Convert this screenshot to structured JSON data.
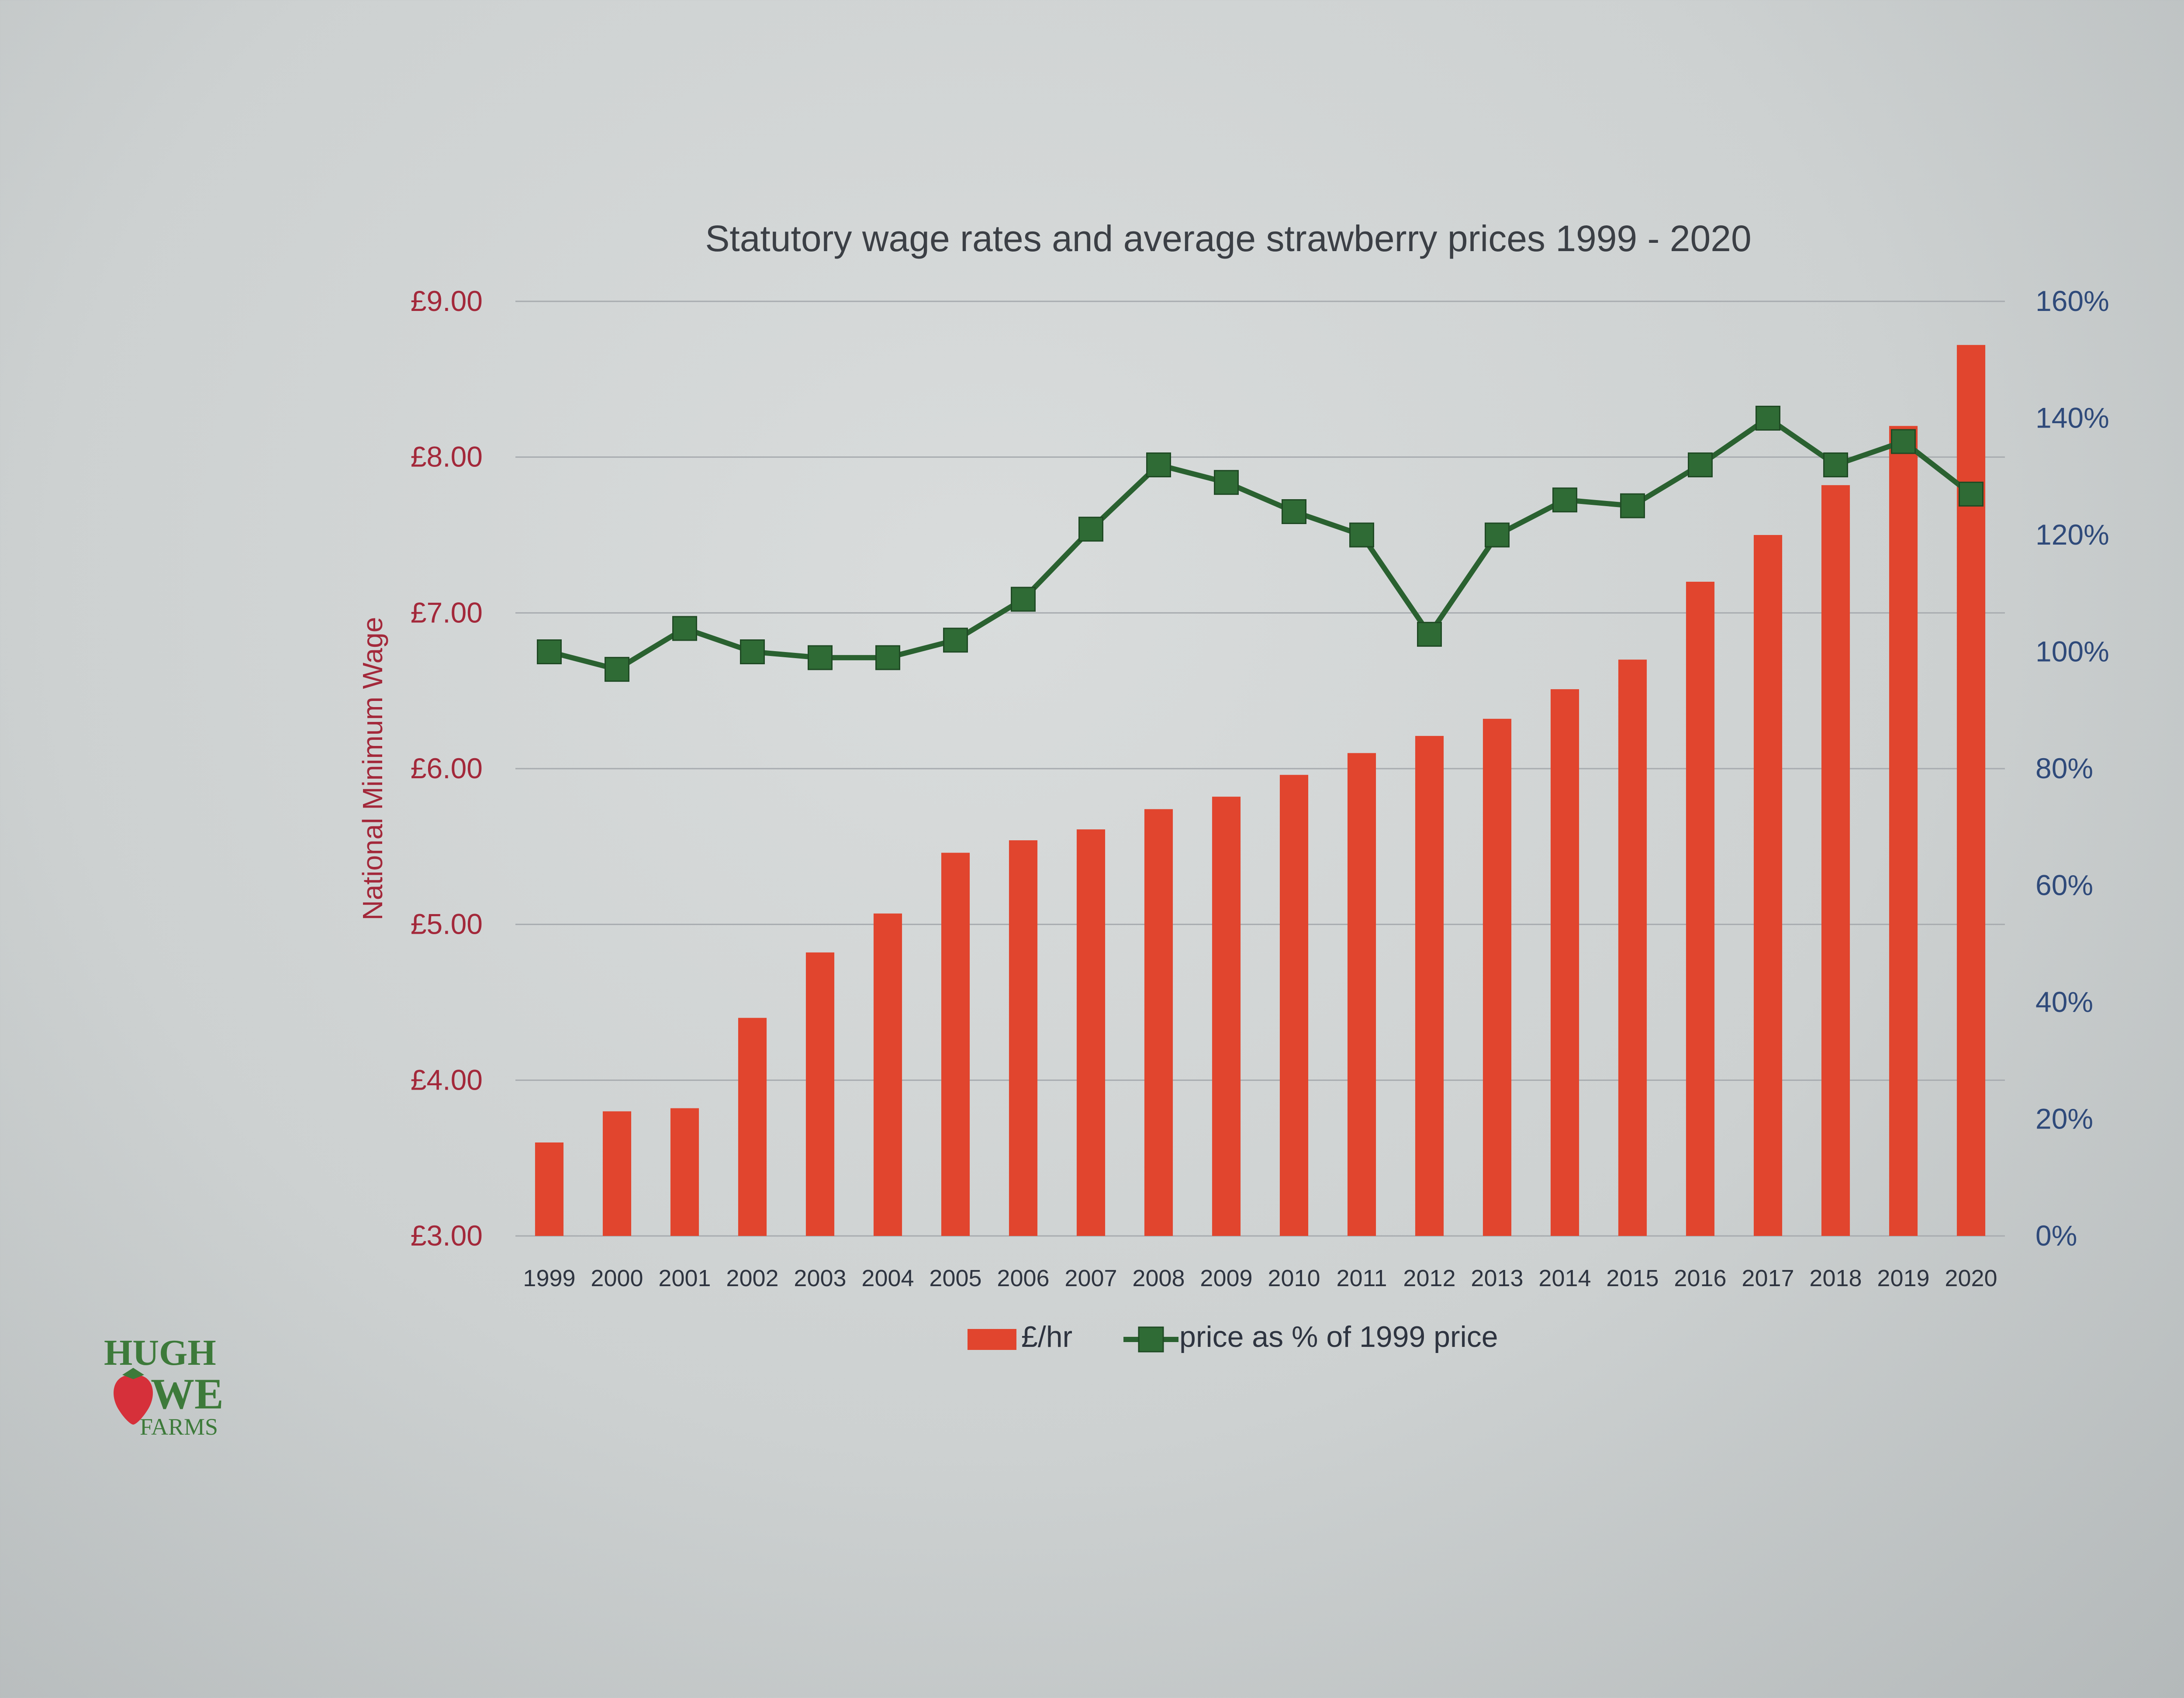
{
  "chart_data": {
    "type": "bar",
    "title": "Statutory wage rates and average strawberry prices 1999 - 2020",
    "ylabel": "National Minimum Wage",
    "y_left_ticks": [
      "£3.00",
      "£4.00",
      "£5.00",
      "£6.00",
      "£7.00",
      "£8.00",
      "£9.00"
    ],
    "y_left_range": [
      3,
      9
    ],
    "y_right_ticks": [
      "0%",
      "20%",
      "40%",
      "60%",
      "80%",
      "100%",
      "120%",
      "140%",
      "160%"
    ],
    "y_right_range": [
      0,
      160
    ],
    "categories": [
      "1999",
      "2000",
      "2001",
      "2002",
      "2003",
      "2004",
      "2005",
      "2006",
      "2007",
      "2008",
      "2009",
      "2010",
      "2011",
      "2012",
      "2013",
      "2014",
      "2015",
      "2016",
      "2017",
      "2018",
      "2019",
      "2020"
    ],
    "series": [
      {
        "name": "£/hr",
        "type": "bar",
        "axis": "left",
        "color": "#e1452e",
        "values": [
          3.6,
          3.8,
          3.82,
          4.4,
          4.82,
          5.07,
          5.46,
          5.54,
          5.61,
          5.74,
          5.82,
          5.96,
          6.1,
          6.21,
          6.32,
          6.51,
          6.7,
          7.2,
          7.5,
          7.82,
          8.2,
          8.72
        ]
      },
      {
        "name": "price as % of 1999 price",
        "type": "line",
        "axis": "right",
        "color": "#2a6130",
        "values": [
          100,
          97,
          104,
          100,
          99,
          99,
          102,
          109,
          121,
          132,
          129,
          124,
          120,
          103,
          120,
          126,
          125,
          132,
          140,
          132,
          136,
          127
        ]
      }
    ],
    "grid": true,
    "legend": "bottom-center"
  },
  "logo": {
    "line1": "HUGH",
    "line2": "WE",
    "line3": "FARMS"
  }
}
